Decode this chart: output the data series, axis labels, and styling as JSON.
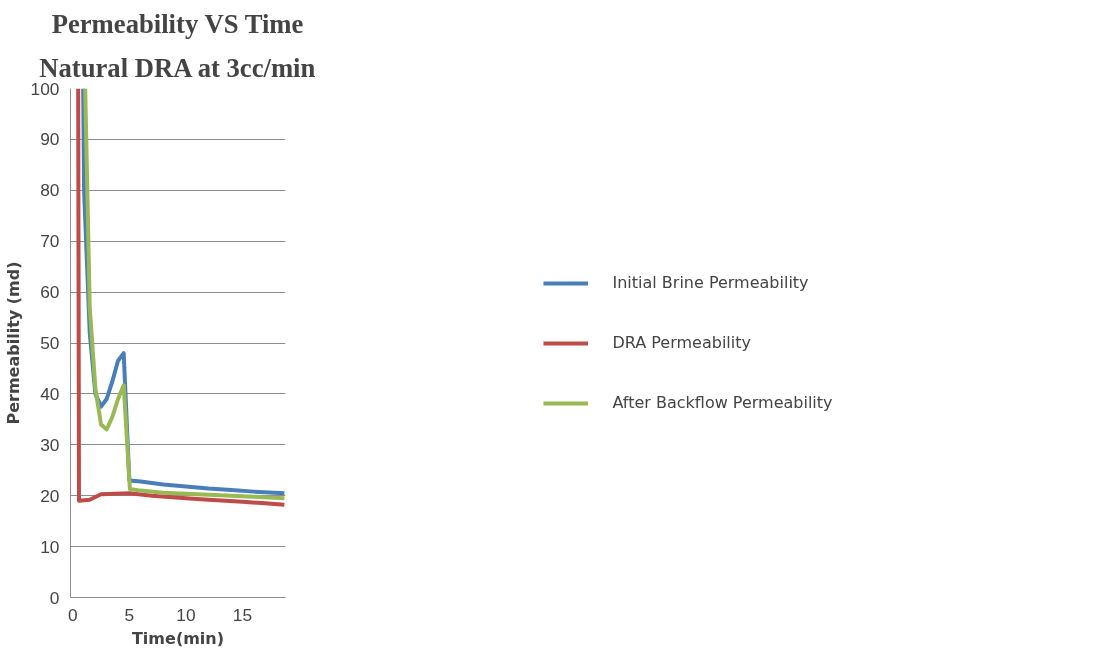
{
  "chart_data": {
    "type": "line",
    "title": "Permeability VS Time",
    "subtitle": "Natural DRA at 3cc/min",
    "xlabel": "Time(min)",
    "ylabel": "Permeability (md)",
    "xlim": [
      -0.2,
      18.8
    ],
    "xticks": [
      0,
      5,
      10,
      15
    ],
    "ylim": [
      0,
      100
    ],
    "yticks": [
      0,
      10,
      20,
      30,
      40,
      50,
      60,
      70,
      80,
      90,
      100
    ],
    "grid": "y",
    "legend": "right",
    "marker": "none",
    "line_style": "solid",
    "series": [
      {
        "name": "Initial Brine Permeability",
        "color": "#4a7ebb",
        "x": [
          0.92,
          1.0,
          1.5,
          2.0,
          2.5,
          3.0,
          3.5,
          4.0,
          4.5,
          5.0,
          6,
          8,
          10,
          12,
          14,
          16,
          18.7
        ],
        "values": [
          100,
          80,
          52,
          40,
          37.5,
          39,
          42.5,
          46.5,
          48,
          23,
          22.8,
          22.2,
          21.8,
          21.4,
          21.1,
          20.8,
          20.5
        ]
      },
      {
        "name": "DRA Permeability",
        "color": "#be4b48",
        "x": [
          0.48,
          0.55,
          1.5,
          2.5,
          5,
          7,
          10,
          12,
          15,
          17,
          18.7
        ],
        "values": [
          100,
          19,
          19.2,
          20.3,
          20.5,
          20,
          19.5,
          19.2,
          18.8,
          18.5,
          18.2
        ]
      },
      {
        "name": "After Backflow Permeability",
        "color": "#98b954",
        "x": [
          1.1,
          1.5,
          2.0,
          2.5,
          3.0,
          3.5,
          4.0,
          4.5,
          5.05,
          6,
          8,
          10,
          12,
          14,
          16,
          18.7
        ],
        "values": [
          100,
          57,
          41,
          34,
          33,
          35.5,
          39,
          41.7,
          21.3,
          21,
          20.6,
          20.4,
          20.2,
          20,
          19.8,
          19.5
        ]
      }
    ]
  }
}
